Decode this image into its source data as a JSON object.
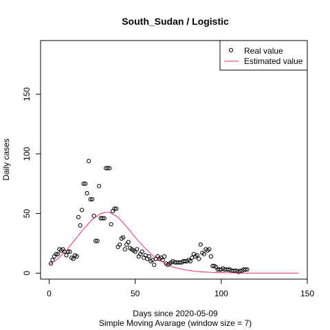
{
  "chart_data": {
    "type": "scatter",
    "title": "South_Sudan / Logistic",
    "xlabel": "Days since 2020-05-09",
    "xlabel2": "Simple Moving Avarage (window size = 7)",
    "ylabel": "Daily cases",
    "xlim": [
      -5,
      150
    ],
    "ylim": [
      -5,
      195
    ],
    "xticks": [
      0,
      50,
      100,
      150
    ],
    "yticks": [
      0,
      50,
      100,
      150
    ],
    "legend": {
      "position": "top-right",
      "entries": [
        {
          "label": "Real value",
          "kind": "point",
          "color": "#000000"
        },
        {
          "label": "Estimated value",
          "kind": "line",
          "color": "#e3326e"
        }
      ]
    },
    "colors": {
      "real": "#000000",
      "estimated": "#e3326e"
    },
    "series": [
      {
        "name": "Real value",
        "kind": "points",
        "x": [
          1,
          2,
          3,
          4,
          5,
          6,
          7,
          8,
          9,
          10,
          11,
          12,
          13,
          14,
          15,
          16,
          17,
          18,
          19,
          20,
          21,
          22,
          23,
          24,
          25,
          26,
          27,
          28,
          29,
          30,
          31,
          32,
          33,
          34,
          35,
          36,
          37,
          38,
          39,
          40,
          41,
          42,
          43,
          44,
          45,
          46,
          47,
          48,
          49,
          50,
          51,
          52,
          53,
          54,
          55,
          56,
          57,
          58,
          59,
          60,
          61,
          62,
          63,
          64,
          65,
          66,
          67,
          68,
          69,
          70,
          71,
          72,
          73,
          74,
          75,
          76,
          77,
          78,
          79,
          80,
          81,
          82,
          83,
          84,
          85,
          86,
          87,
          88,
          89,
          90,
          91,
          92,
          93,
          94,
          95,
          96,
          97,
          98,
          99,
          100,
          101,
          102,
          103,
          104,
          105,
          106,
          107,
          108,
          109,
          110,
          111,
          112,
          113,
          114,
          115
        ],
        "y": [
          8,
          11,
          14,
          16,
          16,
          20,
          19,
          20,
          18,
          15,
          18,
          18,
          13,
          12,
          15,
          14,
          47,
          40,
          53,
          75,
          75,
          67,
          94,
          62,
          62,
          48,
          27,
          27,
          73,
          46,
          46,
          46,
          88,
          88,
          88,
          41,
          52,
          54,
          54,
          22,
          24,
          29,
          30,
          20,
          24,
          26,
          21,
          20,
          19,
          18,
          20,
          14,
          16,
          18,
          13,
          15,
          12,
          14,
          10,
          11,
          7,
          12,
          14,
          12,
          13,
          11,
          14,
          8,
          7,
          8,
          9,
          10,
          9,
          9,
          9,
          9,
          9,
          10,
          10,
          10,
          11,
          10,
          13,
          16,
          14,
          15,
          12,
          24,
          17,
          16,
          20,
          19,
          20,
          14,
          6,
          6,
          5,
          3,
          3,
          3,
          4,
          3,
          3,
          3,
          3,
          2,
          2,
          2,
          2,
          1,
          2,
          2,
          3,
          3,
          3
        ]
      },
      {
        "name": "Estimated value",
        "kind": "line",
        "x": [
          0,
          5,
          10,
          15,
          20,
          25,
          30,
          33,
          35,
          40,
          45,
          50,
          55,
          60,
          65,
          70,
          75,
          80,
          85,
          90,
          95,
          100,
          105,
          110,
          115,
          120,
          130,
          145
        ],
        "y": [
          7,
          12,
          19,
          28,
          37,
          45,
          50,
          51,
          51,
          47,
          39,
          30,
          22,
          15,
          10,
          6,
          4,
          2.5,
          1.5,
          1,
          0.6,
          0.4,
          0.3,
          0.2,
          0.1,
          0.1,
          0,
          0
        ]
      }
    ]
  }
}
